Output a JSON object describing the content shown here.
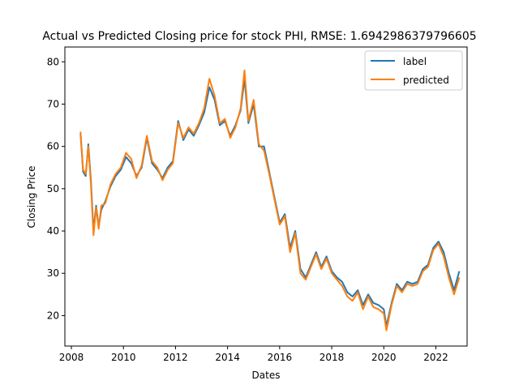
{
  "figure": {
    "title": "Actual vs Predicted Closing price for stock PHI, RMSE: 1.6942986379796605"
  },
  "chart_data": {
    "type": "line",
    "title": "Actual vs Predicted Closing price for stock PHI, RMSE: 1.6942986379796605",
    "xlabel": "Dates",
    "ylabel": "Closing Price",
    "xlim": [
      2007.75,
      2023.2
    ],
    "ylim": [
      12.8,
      83.5
    ],
    "x_ticks": [
      2008,
      2010,
      2012,
      2014,
      2016,
      2018,
      2020,
      2022
    ],
    "x_tick_labels": [
      "2008",
      "2010",
      "2012",
      "2014",
      "2016",
      "2018",
      "2020",
      "2022"
    ],
    "y_ticks": [
      20,
      30,
      40,
      50,
      60,
      70,
      80
    ],
    "y_tick_labels": [
      "20",
      "30",
      "40",
      "50",
      "60",
      "70",
      "80"
    ],
    "grid": false,
    "legend_position": "top-right",
    "x": [
      2008.35,
      2008.45,
      2008.55,
      2008.65,
      2008.75,
      2008.85,
      2008.95,
      2009.05,
      2009.15,
      2009.3,
      2009.5,
      2009.7,
      2009.9,
      2010.1,
      2010.3,
      2010.5,
      2010.7,
      2010.9,
      2011.1,
      2011.3,
      2011.5,
      2011.7,
      2011.9,
      2012.1,
      2012.3,
      2012.5,
      2012.7,
      2012.9,
      2013.1,
      2013.3,
      2013.5,
      2013.7,
      2013.9,
      2014.1,
      2014.3,
      2014.5,
      2014.65,
      2014.8,
      2015.0,
      2015.2,
      2015.4,
      2015.6,
      2015.8,
      2016.0,
      2016.2,
      2016.4,
      2016.6,
      2016.8,
      2017.0,
      2017.2,
      2017.4,
      2017.6,
      2017.8,
      2018.0,
      2018.2,
      2018.4,
      2018.6,
      2018.8,
      2019.0,
      2019.2,
      2019.4,
      2019.6,
      2019.8,
      2020.0,
      2020.1,
      2020.3,
      2020.5,
      2020.7,
      2020.9,
      2021.1,
      2021.3,
      2021.5,
      2021.7,
      2021.9,
      2022.1,
      2022.3,
      2022.5,
      2022.7,
      2022.9
    ],
    "series": [
      {
        "name": "label",
        "color": "#1f77b4",
        "values": [
          63.0,
          54.0,
          53.0,
          60.5,
          52.0,
          40.0,
          46.0,
          41.0,
          45.0,
          47.0,
          50.5,
          53.0,
          54.5,
          57.5,
          56.0,
          53.0,
          55.0,
          62.0,
          56.0,
          54.5,
          52.5,
          55.0,
          56.5,
          66.0,
          61.5,
          64.0,
          62.5,
          65.0,
          68.0,
          74.0,
          71.0,
          65.0,
          66.0,
          62.5,
          65.0,
          68.5,
          76.0,
          65.5,
          70.0,
          60.0,
          60.0,
          54.0,
          48.0,
          42.0,
          44.0,
          36.0,
          40.0,
          31.0,
          29.0,
          32.0,
          35.0,
          31.5,
          34.0,
          30.5,
          29.0,
          28.0,
          25.5,
          24.5,
          26.0,
          22.5,
          25.0,
          23.0,
          22.5,
          21.5,
          17.5,
          23.0,
          27.5,
          26.0,
          28.0,
          27.5,
          28.0,
          31.0,
          32.0,
          36.0,
          37.5,
          35.0,
          30.0,
          26.0,
          30.5
        ]
      },
      {
        "name": "predicted",
        "color": "#ff7f0e",
        "values": [
          63.5,
          54.5,
          53.5,
          60.0,
          51.0,
          39.0,
          45.5,
          40.5,
          46.0,
          46.5,
          51.0,
          53.5,
          55.0,
          58.5,
          57.0,
          52.5,
          55.5,
          62.5,
          56.5,
          55.0,
          52.0,
          54.5,
          56.0,
          65.5,
          62.0,
          64.5,
          63.0,
          65.5,
          69.0,
          76.0,
          72.0,
          65.5,
          66.5,
          62.0,
          64.5,
          69.0,
          78.0,
          66.0,
          71.0,
          60.5,
          59.0,
          53.5,
          47.5,
          41.5,
          43.5,
          35.0,
          39.5,
          30.0,
          28.5,
          31.5,
          34.5,
          31.0,
          33.5,
          30.0,
          28.5,
          27.0,
          24.5,
          23.5,
          25.5,
          21.5,
          24.5,
          22.0,
          21.5,
          20.5,
          16.5,
          22.5,
          27.0,
          25.5,
          27.5,
          27.0,
          27.5,
          30.5,
          31.5,
          35.5,
          37.0,
          34.0,
          29.0,
          25.0,
          29.0
        ]
      }
    ]
  }
}
